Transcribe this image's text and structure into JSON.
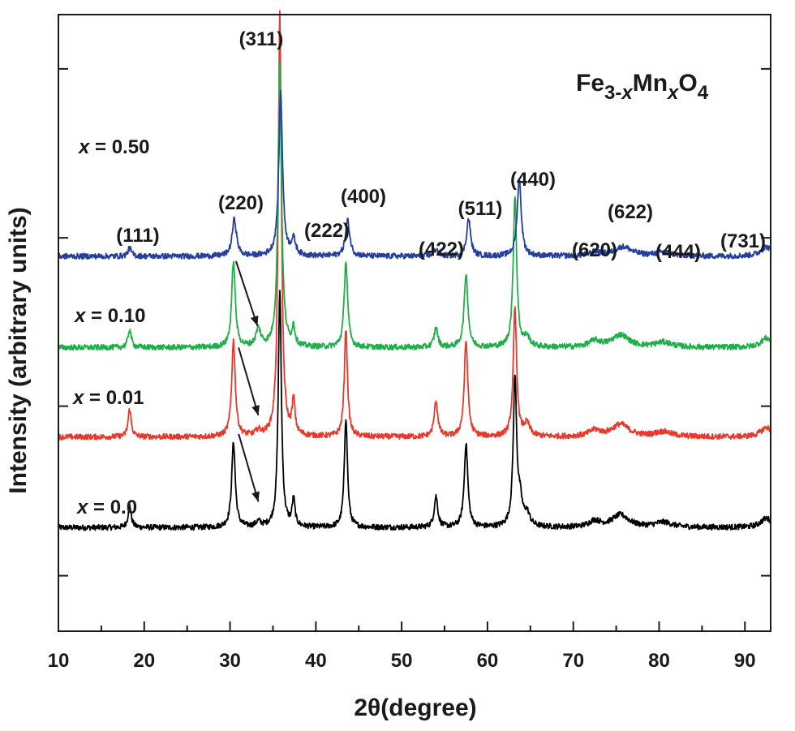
{
  "chart_data": {
    "type": "line",
    "title": "",
    "xlabel": "2θ(degree)",
    "ylabel": "Intensity (arbitrary units)",
    "xlim": [
      10,
      93
    ],
    "ylim": [
      0,
      100
    ],
    "x_ticks": [
      10,
      20,
      30,
      40,
      50,
      60,
      70,
      80,
      90
    ],
    "y_ticks_unlabeled": true,
    "grid": false,
    "legend": "none (series labeled inline)",
    "annotation_formula": {
      "base": "Fe",
      "s1": "3-",
      "s1_italic": "x",
      "mid": "Mn",
      "s2": "x",
      "tail": "O",
      "s3": "4"
    },
    "peak_labels": [
      {
        "text": "(111)",
        "x": 18.5
      },
      {
        "text": "(220)",
        "x": 30.3
      },
      {
        "text": "(311)",
        "x": 35.8
      },
      {
        "text": "(222)",
        "x": 37.4
      },
      {
        "text": "(400)",
        "x": 43.5
      },
      {
        "text": "(422)",
        "x": 54.0
      },
      {
        "text": "(511)",
        "x": 57.8
      },
      {
        "text": "(440)",
        "x": 64.0
      },
      {
        "text": "(620)",
        "x": 71.5
      },
      {
        "text": "(622)",
        "x": 77.0
      },
      {
        "text": "(444)",
        "x": 83.0
      },
      {
        "text": "(731)",
        "x": 89.5
      }
    ],
    "series": [
      {
        "label_var": "x",
        "label_value": " = 0.0",
        "color": "#000000",
        "baseline": 16.8,
        "noise": 0.45,
        "peaks": [
          [
            18.3,
            3.6,
            0.22
          ],
          [
            30.4,
            13.8,
            0.25
          ],
          [
            33.3,
            0.8,
            0.35
          ],
          [
            35.8,
            38.5,
            0.22
          ],
          [
            37.4,
            4.3,
            0.2
          ],
          [
            43.5,
            17.8,
            0.22
          ],
          [
            54.0,
            5.0,
            0.25
          ],
          [
            57.5,
            13.6,
            0.25
          ],
          [
            63.2,
            24.0,
            0.24
          ],
          [
            63.8,
            3.5,
            0.3
          ],
          [
            64.6,
            2.0,
            0.4
          ],
          [
            72.5,
            1.0,
            0.8
          ],
          [
            75.5,
            2.0,
            1.2
          ],
          [
            80.5,
            0.8,
            1.2
          ],
          [
            92.5,
            1.5,
            0.8
          ]
        ],
        "arrow": {
          "from": [
            31.0,
            32
          ],
          "to": [
            33.3,
            21
          ]
        }
      },
      {
        "label_var": "x",
        "label_value": " = 0.01",
        "color": "#e8382a",
        "baseline": 31.5,
        "noise": 0.45,
        "peaks": [
          [
            18.3,
            4.5,
            0.22
          ],
          [
            30.4,
            15.5,
            0.25
          ],
          [
            33.3,
            0.8,
            0.35
          ],
          [
            35.8,
            68.5,
            0.22
          ],
          [
            37.4,
            5.5,
            0.2
          ],
          [
            43.5,
            17.5,
            0.22
          ],
          [
            54.0,
            5.8,
            0.25
          ],
          [
            57.5,
            15.5,
            0.25
          ],
          [
            63.2,
            20.5,
            0.24
          ],
          [
            64.6,
            2.0,
            0.4
          ],
          [
            72.5,
            1.0,
            0.8
          ],
          [
            75.5,
            2.0,
            1.2
          ],
          [
            80.5,
            0.8,
            1.2
          ],
          [
            92.5,
            1.5,
            0.8
          ]
        ],
        "arrow": {
          "from": [
            31.0,
            46
          ],
          "to": [
            33.3,
            35
          ]
        }
      },
      {
        "label_var": "x",
        "label_value": " = 0.10",
        "color": "#1fae4a",
        "baseline": 46.0,
        "noise": 0.45,
        "peaks": [
          [
            18.3,
            3.0,
            0.22
          ],
          [
            30.4,
            14.0,
            0.25
          ],
          [
            33.3,
            2.8,
            0.35
          ],
          [
            35.8,
            46.0,
            0.24
          ],
          [
            37.4,
            3.0,
            0.2
          ],
          [
            43.5,
            14.0,
            0.24
          ],
          [
            54.0,
            3.2,
            0.25
          ],
          [
            57.5,
            12.0,
            0.26
          ],
          [
            63.2,
            24.5,
            0.24
          ],
          [
            64.6,
            1.5,
            0.4
          ],
          [
            72.5,
            1.0,
            0.8
          ],
          [
            75.5,
            2.0,
            1.2
          ],
          [
            80.5,
            0.8,
            1.2
          ],
          [
            92.5,
            1.5,
            0.8
          ]
        ],
        "arrow": {
          "from": [
            30.7,
            60
          ],
          "to": [
            33.2,
            49.5
          ]
        }
      },
      {
        "label_var": "x",
        "label_value": " = 0.50",
        "color": "#243f9e",
        "baseline": 60.8,
        "noise": 0.45,
        "peaks": [
          [
            18.3,
            1.3,
            0.25
          ],
          [
            30.5,
            6.0,
            0.3
          ],
          [
            35.9,
            26.5,
            0.26
          ],
          [
            37.4,
            2.5,
            0.3
          ],
          [
            43.7,
            5.8,
            0.3
          ],
          [
            54.0,
            1.2,
            0.3
          ],
          [
            57.8,
            6.0,
            0.28
          ],
          [
            63.7,
            12.5,
            0.28
          ],
          [
            72.5,
            0.6,
            0.8
          ],
          [
            75.8,
            1.5,
            1.2
          ],
          [
            80.5,
            0.6,
            1.2
          ],
          [
            92.5,
            1.5,
            0.8
          ]
        ]
      }
    ]
  }
}
